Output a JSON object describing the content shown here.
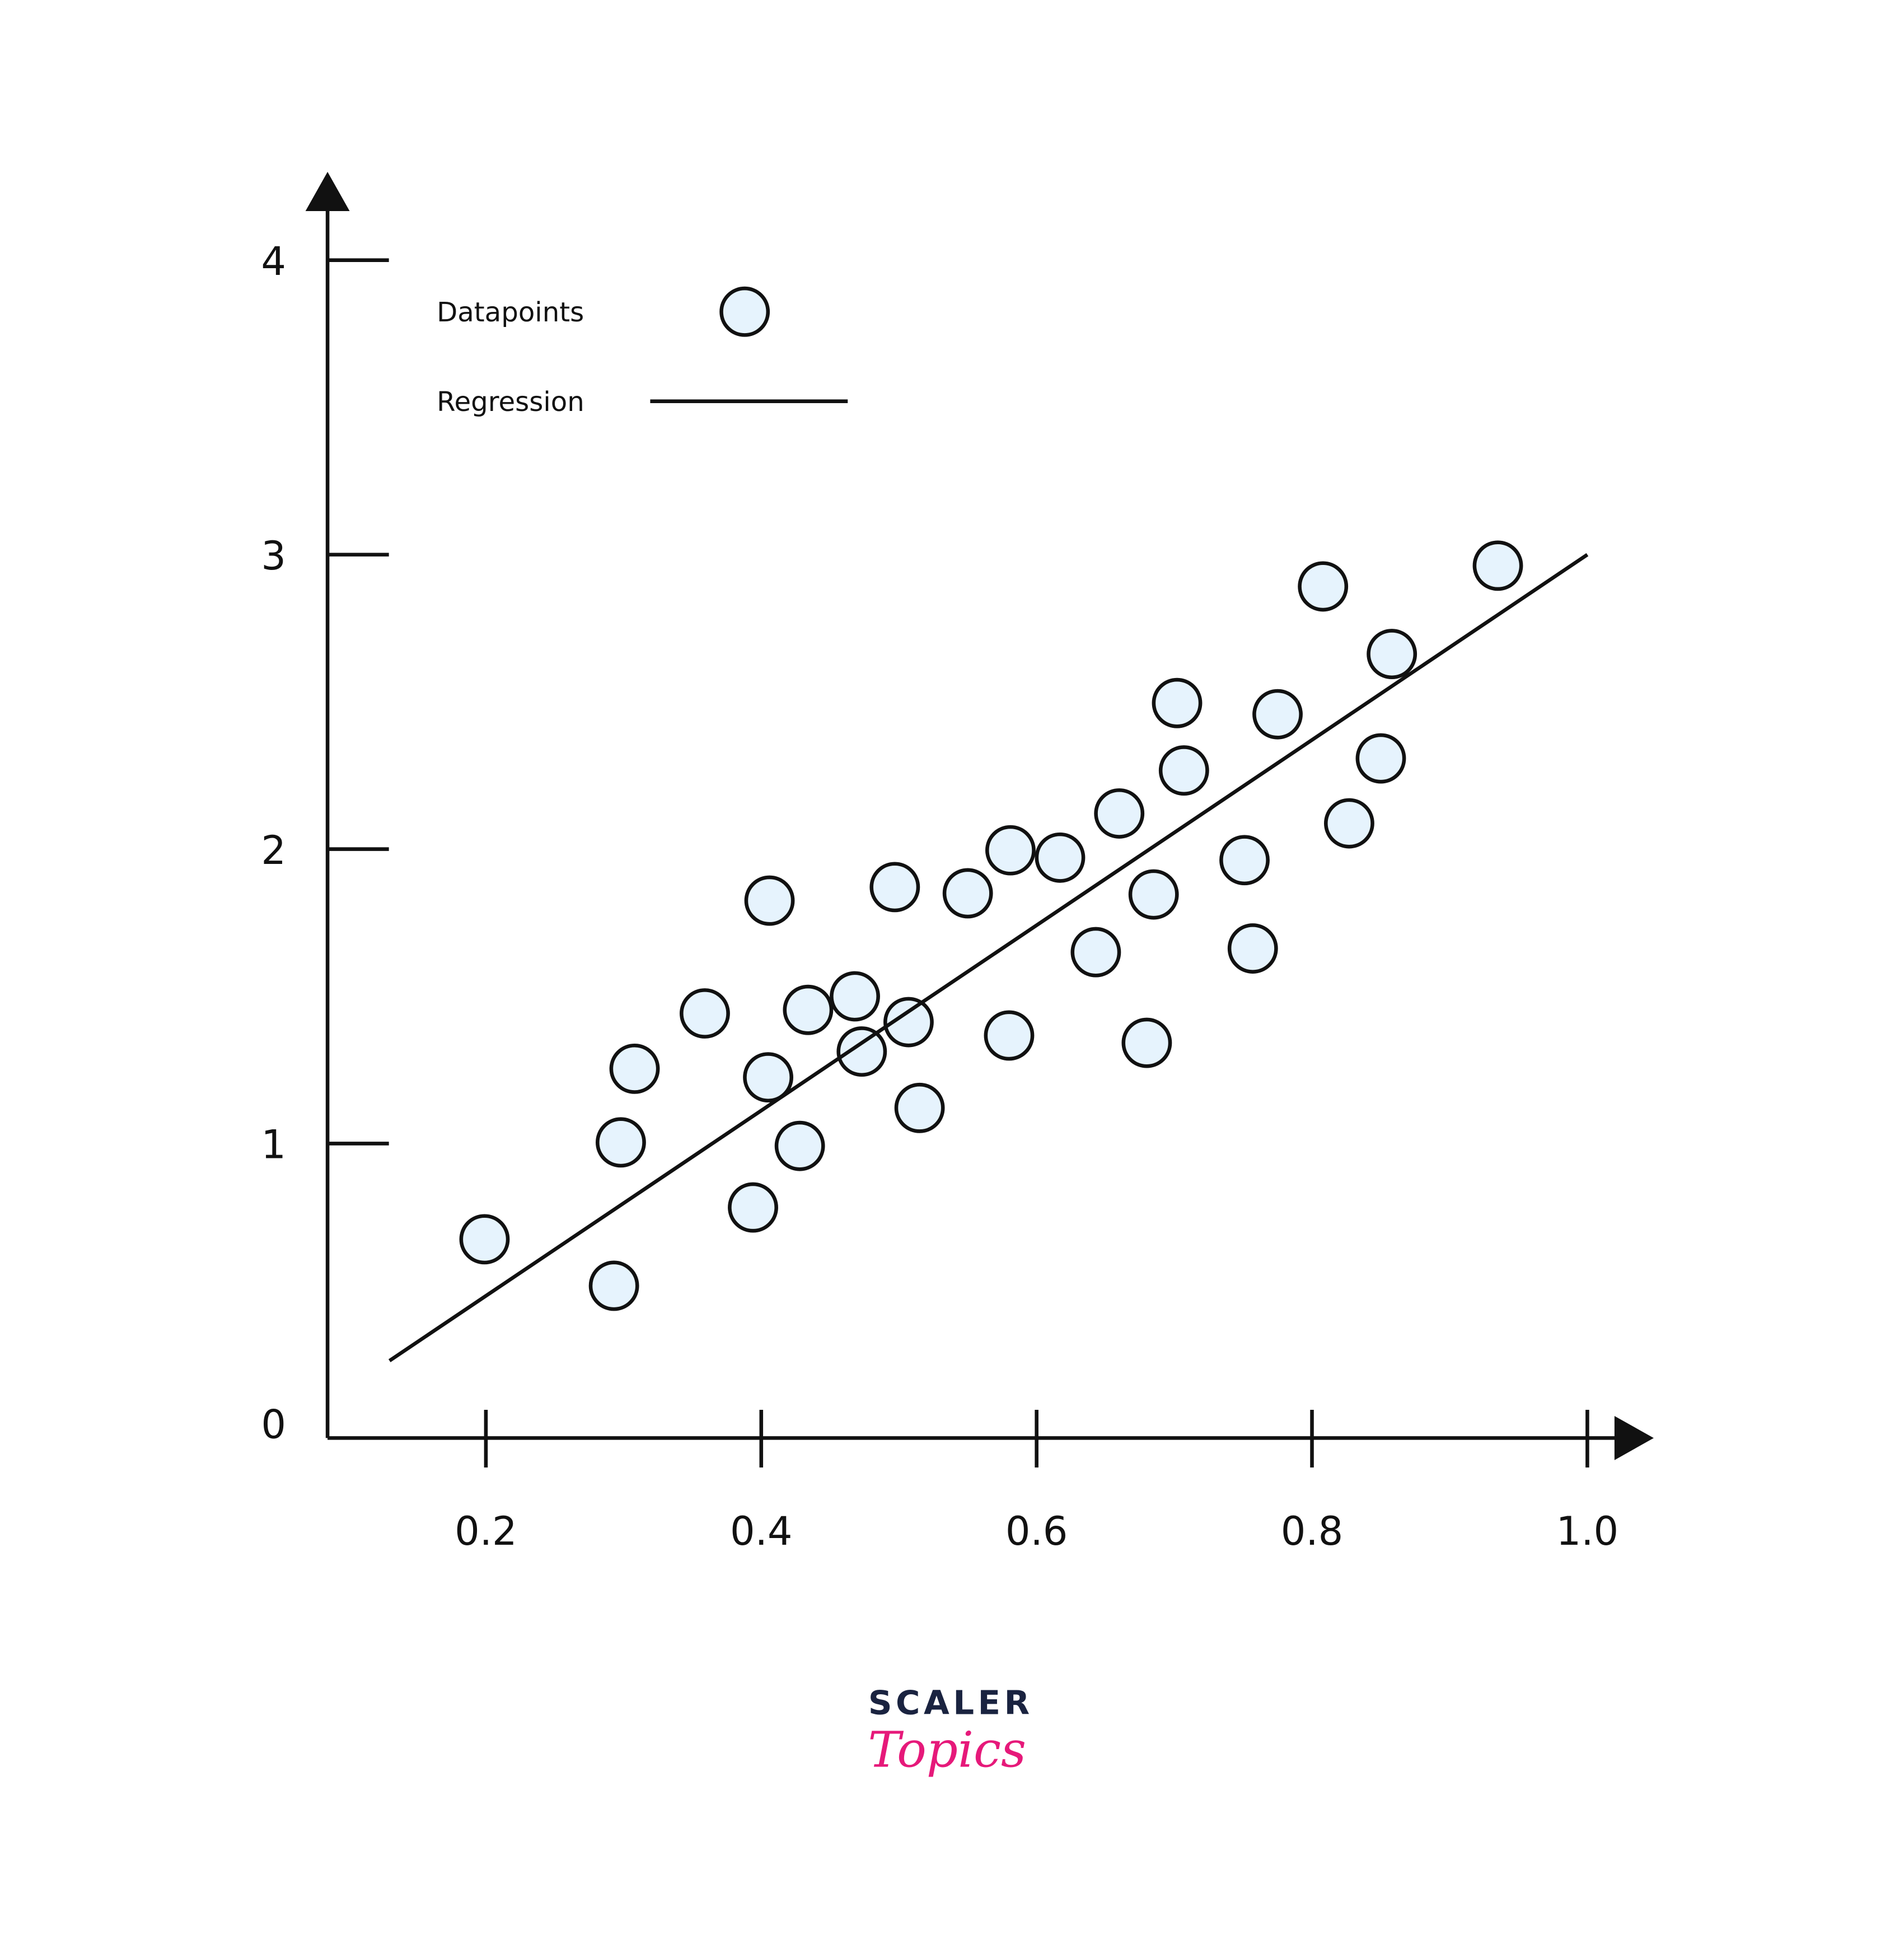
{
  "chart_data": {
    "type": "scatter",
    "xlim": [
      0.085,
      1.05
    ],
    "ylim": [
      0,
      4.25
    ],
    "xticks": [
      0.2,
      0.4,
      0.6,
      0.8,
      {
        "value": 1,
        "label": "1.0"
      }
    ],
    "yticks": [
      0,
      1,
      2,
      3,
      4
    ],
    "legend": "top-left",
    "series": [
      {
        "name": "Datapoints",
        "color": "#e6f3fd",
        "mode": "markers",
        "x": [
          0.199,
          0.293,
          0.298,
          0.308,
          0.359,
          0.394,
          0.405,
          0.406,
          0.428,
          0.434,
          0.468,
          0.473,
          0.497,
          0.507,
          0.515,
          0.55,
          0.58,
          0.581,
          0.617,
          0.643,
          0.66,
          0.68,
          0.685,
          0.702,
          0.707,
          0.751,
          0.757,
          0.775,
          0.808,
          0.827,
          0.85,
          0.858,
          0.935
        ],
        "values": [
          0.675,
          0.517,
          1.004,
          1.254,
          1.442,
          0.783,
          1.225,
          1.825,
          0.992,
          1.454,
          1.5,
          1.3125,
          1.871,
          1.4125,
          1.121,
          1.85,
          1.367,
          1.996,
          1.971,
          1.65,
          2.121,
          1.342,
          1.846,
          2.496,
          2.267,
          1.9625,
          1.6625,
          2.458,
          2.892,
          2.0875,
          2.308,
          2.6625,
          2.9625
        ]
      },
      {
        "name": "Regression",
        "color": "#111111",
        "mode": "line",
        "x": [
          0.13,
          1.0
        ],
        "values": [
          0.2625,
          3.0
        ]
      }
    ]
  },
  "logo": {
    "line1": "SCALER",
    "line2": "Topics"
  }
}
